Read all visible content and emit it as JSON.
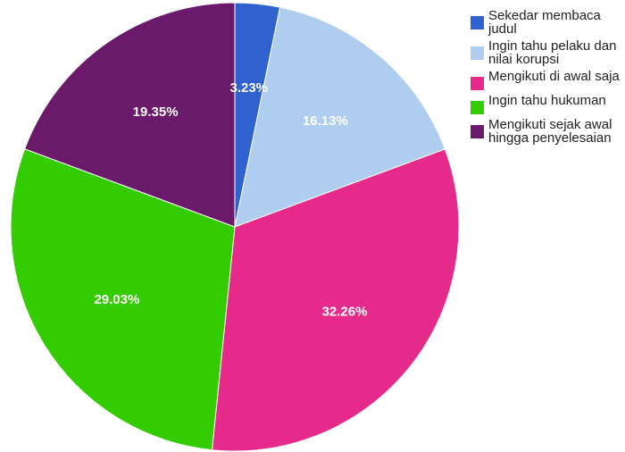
{
  "chart_data": {
    "type": "pie",
    "categories": [
      "Sekedar membaca judul",
      "Ingin tahu pelaku dan nilai korupsi",
      "Mengikuti di awal saja",
      "Ingin tahu hukuman",
      "Mengikuti sejak awal hingga penyelesaian"
    ],
    "values": [
      3.23,
      16.13,
      32.26,
      29.03,
      19.35
    ],
    "value_labels": [
      "3.23%",
      "16.13%",
      "32.26%",
      "29.03%",
      "19.35%"
    ],
    "colors": [
      "#2f62cf",
      "#aecdef",
      "#e62a8b",
      "#33cc00",
      "#6b1a6b"
    ],
    "legend": "right"
  }
}
